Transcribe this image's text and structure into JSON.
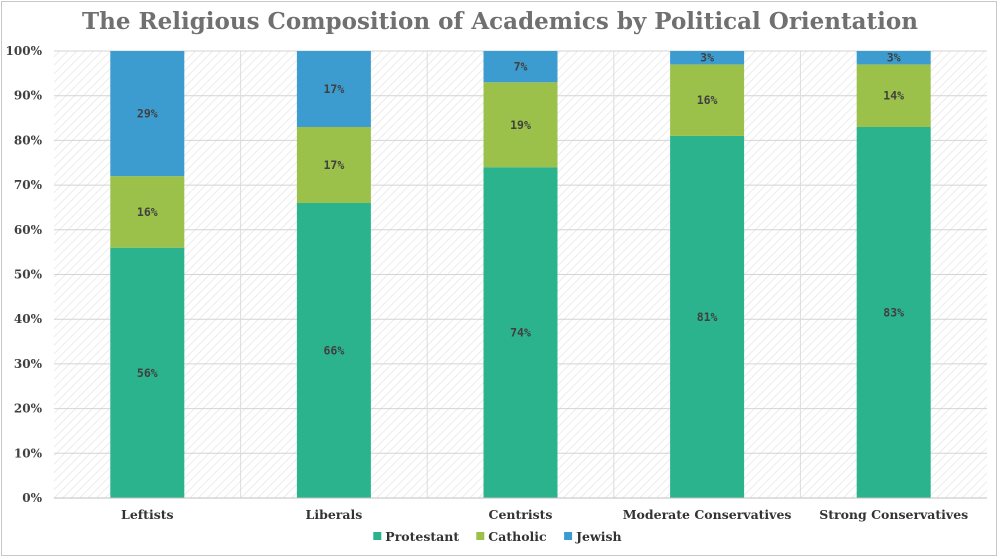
{
  "chart_data": {
    "type": "bar",
    "stacked": true,
    "title": "The Religious Composition of Academics by Political Orientation",
    "categories": [
      "Leftists",
      "Liberals",
      "Centrists",
      "Moderate Conservatives",
      "Strong Conservatives"
    ],
    "series": [
      {
        "name": "Protestant",
        "color": "#2bb38d",
        "values": [
          56,
          66,
          74,
          81,
          83
        ],
        "labels": [
          "56%",
          "66%",
          "74%",
          "81%",
          "83%"
        ]
      },
      {
        "name": "Catholic",
        "color": "#9bc14b",
        "values": [
          16,
          17,
          19,
          16,
          14
        ],
        "labels": [
          "16%",
          "17%",
          "19%",
          "16%",
          "14%"
        ]
      },
      {
        "name": "Jewish",
        "color": "#3d9ccf",
        "values": [
          29,
          17,
          7,
          3,
          3
        ],
        "labels": [
          "29%",
          "17%",
          "7%",
          "3%",
          "3%"
        ]
      }
    ],
    "ylim": [
      0,
      100
    ],
    "yticks": [
      "0%",
      "10%",
      "20%",
      "30%",
      "40%",
      "50%",
      "60%",
      "70%",
      "80%",
      "90%",
      "100%"
    ],
    "xlabel": "",
    "ylabel": "",
    "grid": true,
    "legend_position": "bottom"
  }
}
